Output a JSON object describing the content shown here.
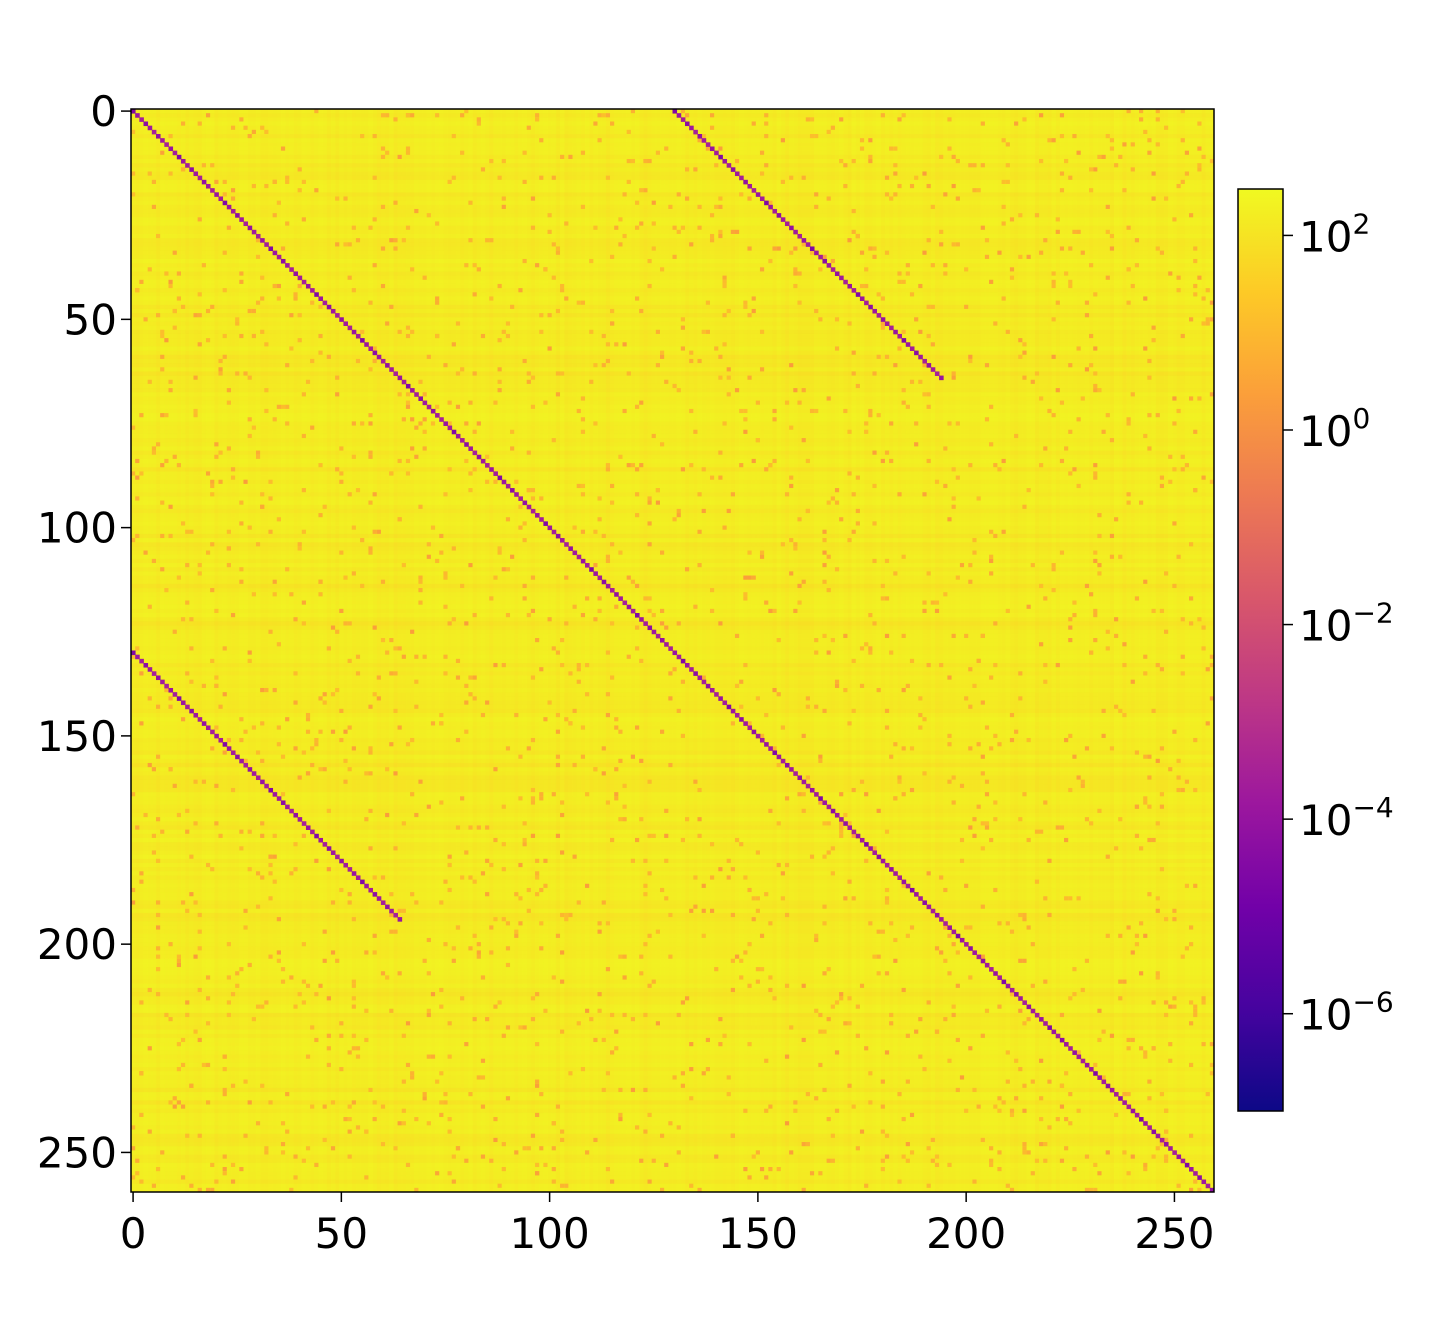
{
  "chart_data": {
    "type": "heatmap",
    "title": "",
    "xlabel": "",
    "ylabel": "",
    "n_rows": 260,
    "n_cols": 260,
    "xlim": [
      0,
      260
    ],
    "ylim": [
      260,
      0
    ],
    "x_ticks": [
      0,
      50,
      100,
      150,
      200,
      250
    ],
    "y_ticks": [
      0,
      50,
      100,
      150,
      200,
      250
    ],
    "x_tick_labels": [
      "0",
      "50",
      "100",
      "150",
      "200",
      "250"
    ],
    "y_tick_labels": [
      "0",
      "50",
      "100",
      "150",
      "200",
      "250"
    ],
    "colormap": "plasma",
    "color_scale": "log",
    "color_range": [
      1e-07,
      300
    ],
    "background_level": "about 10 to 300 (yellow-orange)",
    "minima_lines": [
      {
        "name": "main-diagonal",
        "row_start": 0,
        "col_start": 0,
        "row_end": 259,
        "col_end": 259,
        "approx_value": 0.0001
      },
      {
        "name": "upper-offset",
        "row_start": 0,
        "col_start": 130,
        "row_end": 64,
        "col_end": 194,
        "approx_value": 0.0001
      },
      {
        "name": "lower-offset",
        "row_start": 130,
        "col_start": 0,
        "row_end": 194,
        "col_end": 64,
        "approx_value": 0.0001
      }
    ],
    "bright_bands": [
      73,
      74,
      204,
      205
    ],
    "colorbar": {
      "ticks": [
        {
          "base": "10",
          "exponent": "2"
        },
        {
          "base": "10",
          "exponent": "0"
        },
        {
          "base": "10",
          "exponent": "−2"
        },
        {
          "base": "10",
          "exponent": "−4"
        },
        {
          "base": "10",
          "exponent": "−6"
        }
      ],
      "tick_exponents": [
        2,
        0,
        -2,
        -4,
        -6
      ],
      "colors": [
        "#0d0887",
        "#46039f",
        "#7201a8",
        "#9c179e",
        "#bd3786",
        "#d8576b",
        "#ed7953",
        "#fb9f3a",
        "#fdca26",
        "#f0f921"
      ]
    }
  }
}
